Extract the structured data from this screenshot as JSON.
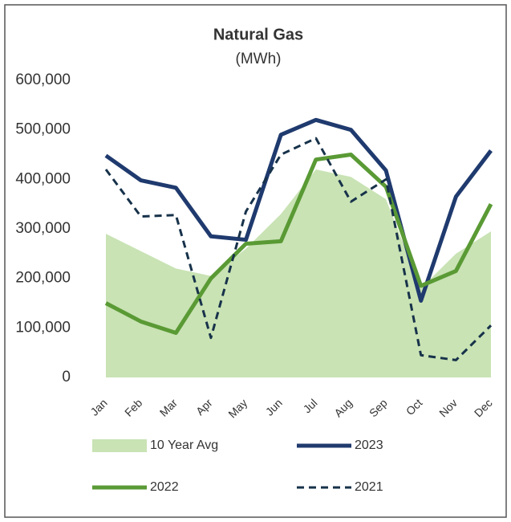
{
  "chart_data": {
    "type": "line",
    "title": "Natural Gas",
    "subtitle": "(MWh)",
    "categories": [
      "Jan",
      "Feb",
      "Mar",
      "Apr",
      "May",
      "Jun",
      "Jul",
      "Aug",
      "Sep",
      "Oct",
      "Nov",
      "Dec"
    ],
    "series": [
      {
        "name": "10 Year Avg",
        "color": "#c9e3b4",
        "style": "area",
        "values": [
          290000,
          255000,
          220000,
          205000,
          260000,
          330000,
          420000,
          405000,
          360000,
          180000,
          250000,
          295000
        ]
      },
      {
        "name": "2023",
        "color": "#1f3a6e",
        "style": "solid",
        "values": [
          448000,
          398000,
          383000,
          285000,
          278000,
          490000,
          520000,
          500000,
          418000,
          155000,
          365000,
          458000
        ]
      },
      {
        "name": "2022",
        "color": "#5a9a35",
        "style": "solid",
        "values": [
          150000,
          113000,
          90000,
          200000,
          270000,
          275000,
          440000,
          450000,
          385000,
          185000,
          215000,
          350000
        ]
      },
      {
        "name": "2021",
        "color": "#17324a",
        "style": "dashed",
        "values": [
          420000,
          325000,
          328000,
          80000,
          335000,
          450000,
          483000,
          355000,
          400000,
          45000,
          35000,
          105000
        ]
      }
    ],
    "ylim": [
      0,
      600000
    ],
    "yticks": [
      0,
      {
        "value": 100000,
        "label": "100,000"
      },
      {
        "value": 200000,
        "label": "200,000"
      },
      {
        "value": 300000,
        "label": "300,000"
      },
      {
        "value": 400000,
        "label": "400,000"
      },
      {
        "value": 500000,
        "label": "500,000"
      },
      {
        "value": 600000,
        "label": "600,000"
      }
    ],
    "grid": false
  }
}
